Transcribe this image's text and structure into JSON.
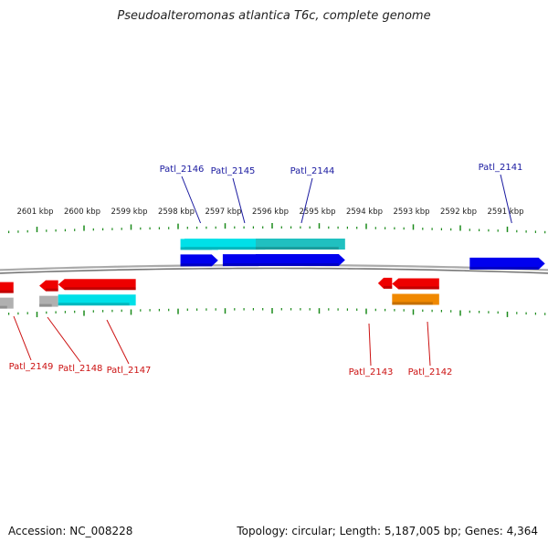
{
  "title": "Pseudoalteromonas atlantica T6c, complete genome",
  "footer": {
    "accession": "Accession: NC_008228",
    "summary": "Topology: circular; Length: 5,187,005 bp; Genes: 4,364"
  },
  "colors": {
    "forward_gene": "#0000ee",
    "forward_cds": "#00e0e8",
    "forward_cds_dark": "#20c0c0",
    "reverse_gene": "#ee0000",
    "reverse_cds_grey": "#b0b0b0",
    "reverse_cds_orange": "#f08800",
    "ruler_tick": "#1a8a1a",
    "backbone": "#888888",
    "forward_label": "#1a1aa0",
    "reverse_label": "#cc1111"
  },
  "ruler_labels": [
    "2601 kbp",
    "2600 kbp",
    "2599 kbp",
    "2598 kbp",
    "2597 kbp",
    "2596 kbp",
    "2595 kbp",
    "2594 kbp",
    "2593 kbp",
    "2592 kbp",
    "2591 kbp"
  ],
  "forward_genes": [
    {
      "locus": "Patl_2146",
      "start_kbp": 2597.15,
      "end_kbp": 2597.95
    },
    {
      "locus": "Patl_2145",
      "start_kbp": 2596.15,
      "end_kbp": 2597.05
    },
    {
      "locus": "Patl_2144",
      "start_kbp": 2594.45,
      "end_kbp": 2596.35
    },
    {
      "locus": "Patl_2141",
      "start_kbp": 2590.2,
      "end_kbp": 2591.8
    }
  ],
  "reverse_genes": [
    {
      "locus": "Patl_2149",
      "start_kbp": 2601.5,
      "end_kbp": 2602.35
    },
    {
      "locus": "Patl_2148",
      "start_kbp": 2600.55,
      "end_kbp": 2600.95
    },
    {
      "locus": "Patl_2147",
      "start_kbp": 2598.9,
      "end_kbp": 2600.55
    },
    {
      "locus": "Patl_2143",
      "start_kbp": 2593.75,
      "end_kbp": 2593.45
    },
    {
      "locus": "Patl_2142",
      "start_kbp": 2592.45,
      "end_kbp": 2593.45
    }
  ]
}
